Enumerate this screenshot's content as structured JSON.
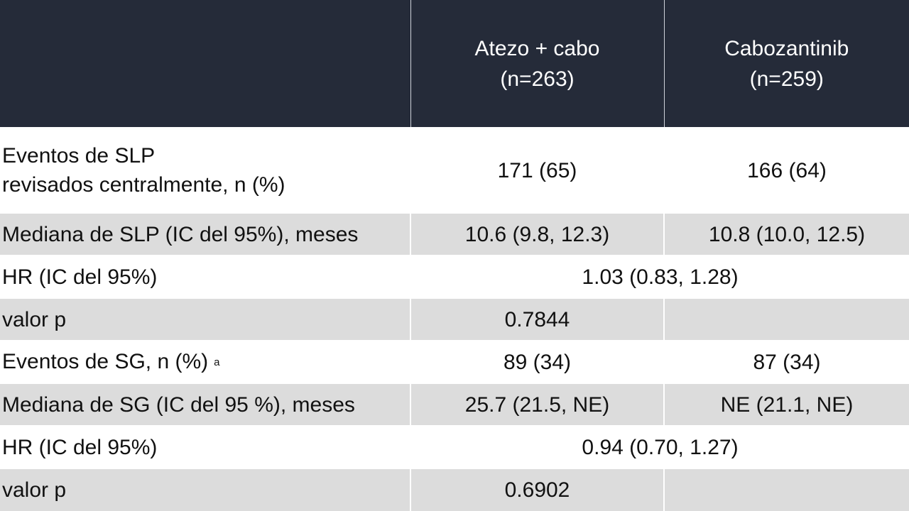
{
  "header": {
    "col1": "",
    "col2_line1": "Atezo + cabo",
    "col2_line2": "(n=263)",
    "col3_line1": "Cabozantinib",
    "col3_line2": "(n=259)"
  },
  "rows": [
    {
      "label_line1": "Eventos de SLP",
      "label_line2": "revisados centralmente, n (%)",
      "atezo_cabo": "171 (65)",
      "cabozantinib": "166 (64)"
    },
    {
      "label": "Mediana de SLP (IC del 95%), meses",
      "atezo_cabo": "10.6 (9.8, 12.3)",
      "cabozantinib": "10.8 (10.0, 12.5)"
    },
    {
      "label": "HR (IC del 95%)",
      "combined": "1.03 (0.83, 1.28)"
    },
    {
      "label": "valor p",
      "atezo_cabo": "0.7844",
      "cabozantinib": ""
    },
    {
      "label": "Eventos de SG, n (%)",
      "footnote": "a",
      "atezo_cabo": "89 (34)",
      "cabozantinib": "87 (34)"
    },
    {
      "label": "Mediana de SG (IC del 95 %), meses",
      "atezo_cabo": "25.7 (21.5, NE)",
      "cabozantinib": "NE (21.1, NE)"
    },
    {
      "label": "HR (IC del 95%)",
      "combined": "0.94 (0.70, 1.27)"
    },
    {
      "label": "valor p",
      "atezo_cabo": "0.6902",
      "cabozantinib": ""
    }
  ],
  "colors": {
    "header_bg": "#252b39",
    "header_text": "#ffffff",
    "shade_row": "#dcdcdc",
    "plain_row": "#ffffff"
  }
}
